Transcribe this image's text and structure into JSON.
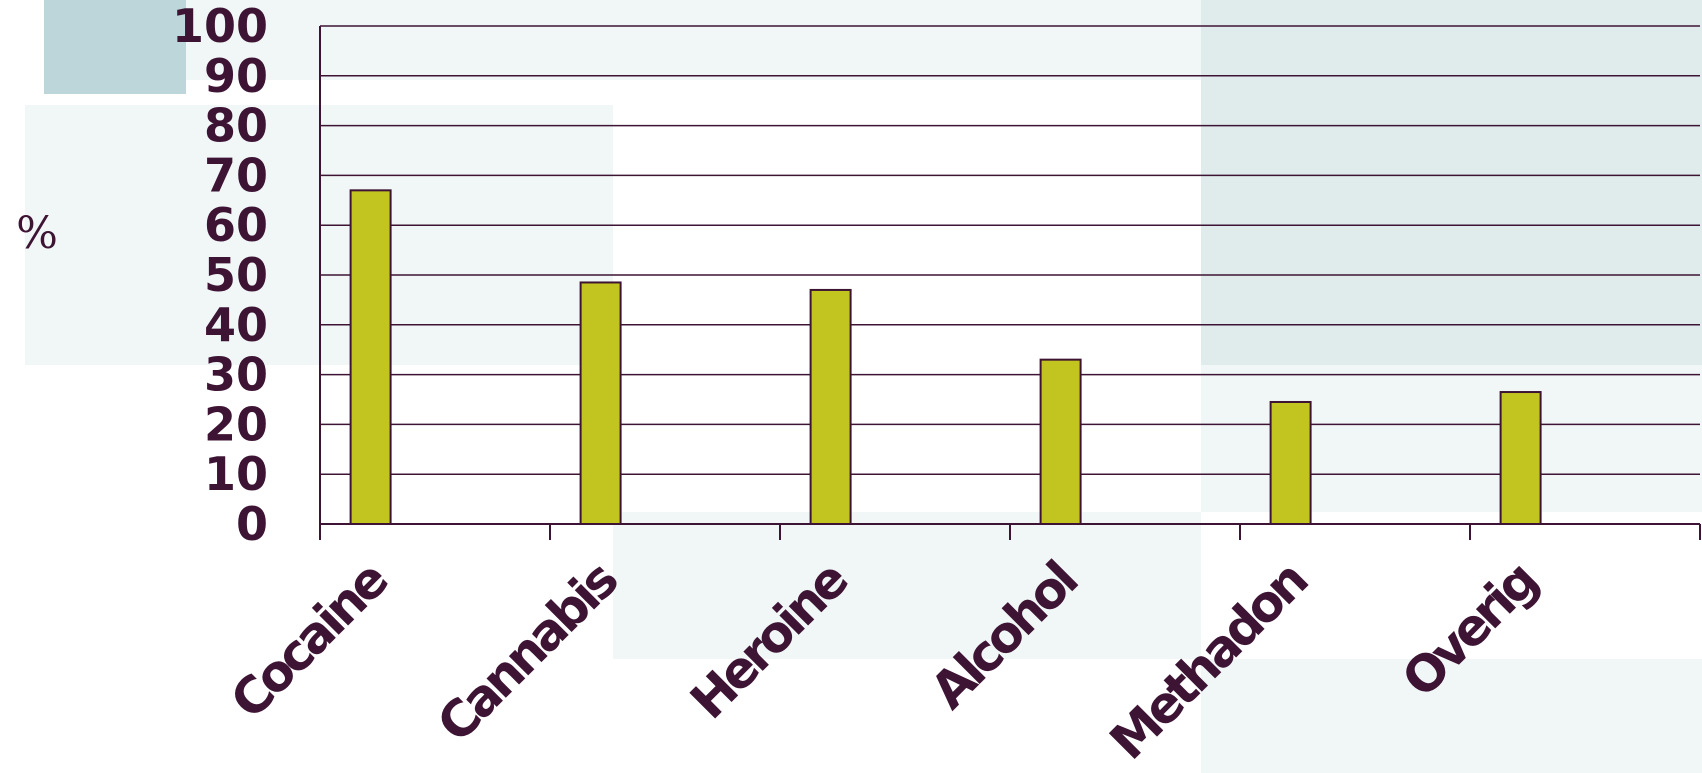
{
  "chart_data": {
    "type": "bar",
    "title": "",
    "xlabel": "",
    "ylabel": "%",
    "categories": [
      "Cocaine",
      "Cannabis",
      "Heroine",
      "Alcohol",
      "Methadon",
      "Overig"
    ],
    "values": [
      67,
      48.5,
      47,
      33,
      24.5,
      26.5
    ],
    "ylim": [
      0,
      100
    ],
    "yticks": [
      "0",
      "10",
      "20",
      "30",
      "40",
      "50",
      "60",
      "70",
      "80",
      "90",
      "100"
    ],
    "grid": true,
    "legend": "none",
    "colors": {
      "bar_fill": "#c2c41f",
      "bar_stroke": "#3d1434",
      "text": "#3d1434",
      "axis": "#3d1434"
    }
  }
}
